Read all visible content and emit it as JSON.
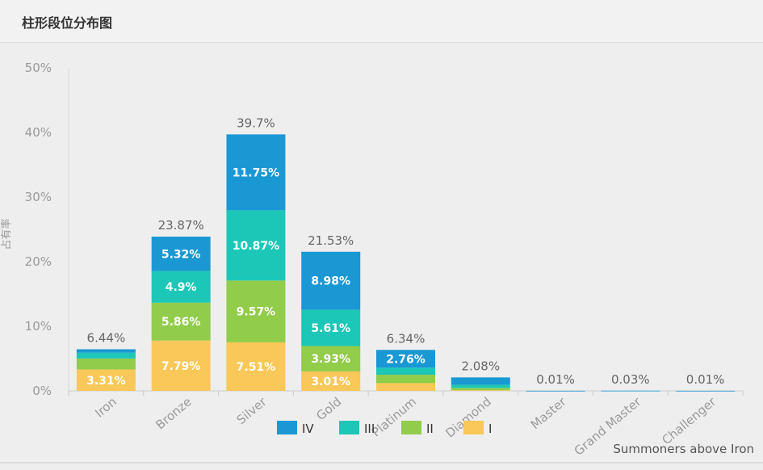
{
  "page": {
    "title": "柱形段位分布图"
  },
  "chart_data": {
    "type": "bar",
    "stacked": true,
    "title": "柱形段位分布图",
    "ylabel": "占有率",
    "xlabel": "",
    "ylim": [
      0,
      50
    ],
    "yticks": [
      "0%",
      "10%",
      "20%",
      "30%",
      "40%",
      "50%"
    ],
    "categories": [
      "Iron",
      "Bronze",
      "Silver",
      "Gold",
      "Platinum",
      "Diamond",
      "Master",
      "Grand Master",
      "Challenger"
    ],
    "totals": [
      "6.44%",
      "23.87%",
      "39.7%",
      "21.53%",
      "6.34%",
      "2.08%",
      "0.01%",
      "0.03%",
      "0.01%"
    ],
    "series": [
      {
        "name": "I",
        "color": "#fac858",
        "values": [
          3.31,
          7.79,
          7.51,
          3.01,
          1.2,
          0.1,
          0,
          0,
          0
        ],
        "labels": [
          "3.31%",
          "7.79%",
          "7.51%",
          "3.01%",
          "",
          "",
          "",
          "",
          ""
        ]
      },
      {
        "name": "II",
        "color": "#91cc4b",
        "values": [
          1.7,
          5.86,
          9.57,
          3.93,
          1.3,
          0.35,
          0,
          0,
          0
        ],
        "labels": [
          "",
          "5.86%",
          "9.57%",
          "3.93%",
          "",
          "",
          "",
          "",
          ""
        ]
      },
      {
        "name": "III",
        "color": "#1cc7b7",
        "values": [
          0.9,
          4.9,
          10.87,
          5.61,
          1.08,
          0.5,
          0,
          0,
          0
        ],
        "labels": [
          "",
          "4.9%",
          "10.87%",
          "5.61%",
          "",
          "",
          "",
          "",
          ""
        ]
      },
      {
        "name": "IV",
        "color": "#1a98d4",
        "values": [
          0.53,
          5.32,
          11.75,
          8.98,
          2.76,
          1.13,
          0.01,
          0.03,
          0.01
        ],
        "labels": [
          "",
          "5.32%",
          "11.75%",
          "8.98%",
          "2.76%",
          "",
          "",
          "",
          ""
        ]
      }
    ],
    "legend": {
      "order": [
        "IV",
        "III",
        "II",
        "I"
      ],
      "placement": "bottom"
    },
    "annotation": "Summoners above Iron"
  }
}
